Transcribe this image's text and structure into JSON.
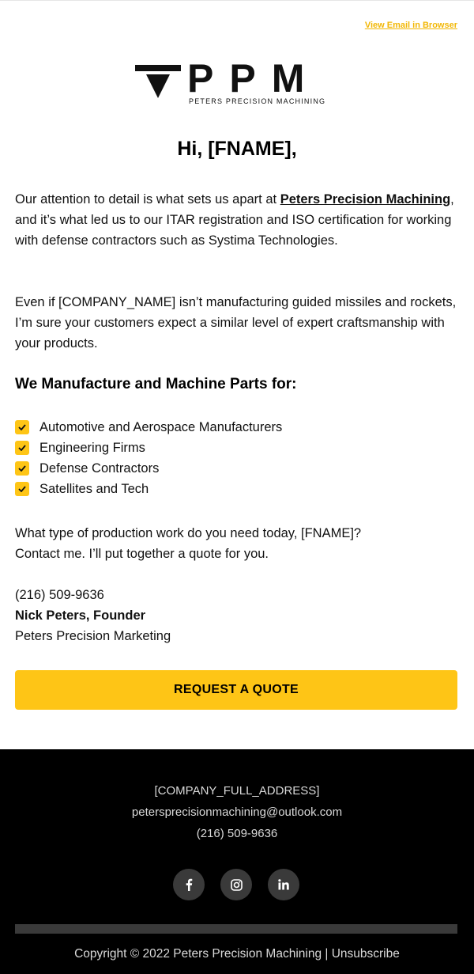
{
  "header": {
    "view_in_browser": "View Email in Browser",
    "logo_text": "PPM",
    "logo_subtitle": "PETERS PRECISION MACHINING"
  },
  "greeting": "Hi, [FNAME],",
  "para1": {
    "before": "Our attention to detail is what sets us apart at ",
    "link": "Peters Precision Machining",
    "after": ", and it’s what led us to our ITAR registration and ISO certification for working with defense contractors such as Systima Technologies."
  },
  "para2": "Even if [COMPANY_NAME] isn’t manufacturing guided missiles and rockets, I’m sure your customers expect a similar level of expert craftsmanship with your products.",
  "section_title": "We Manufacture and Machine Parts for:",
  "list": [
    "Automotive and Aerospace Manufacturers",
    "Engineering Firms",
    "Defense Contractors",
    "Satellites and Tech"
  ],
  "para3": {
    "line1": "What type of production work do you need today, [FNAME]?",
    "line2": "Contact me. I’ll put together a quote for you."
  },
  "contact": {
    "phone": "(216) 509-9636",
    "name": "Nick Peters, Founder",
    "company": "Peters Precision Marketing"
  },
  "cta_label": "REQUEST A QUOTE",
  "footer": {
    "address": "[COMPANY_FULL_ADDRESS]",
    "email": "peterspre­cisionmachining@outlook.com",
    "phone": "(216) 509-9636",
    "social": [
      "f",
      "ig",
      "in"
    ],
    "copyright": "Copyright © 2022 Peters Precision Machining | Unsubscribe"
  },
  "colors": {
    "accent": "#fec516",
    "footer_bg": "#000000"
  }
}
